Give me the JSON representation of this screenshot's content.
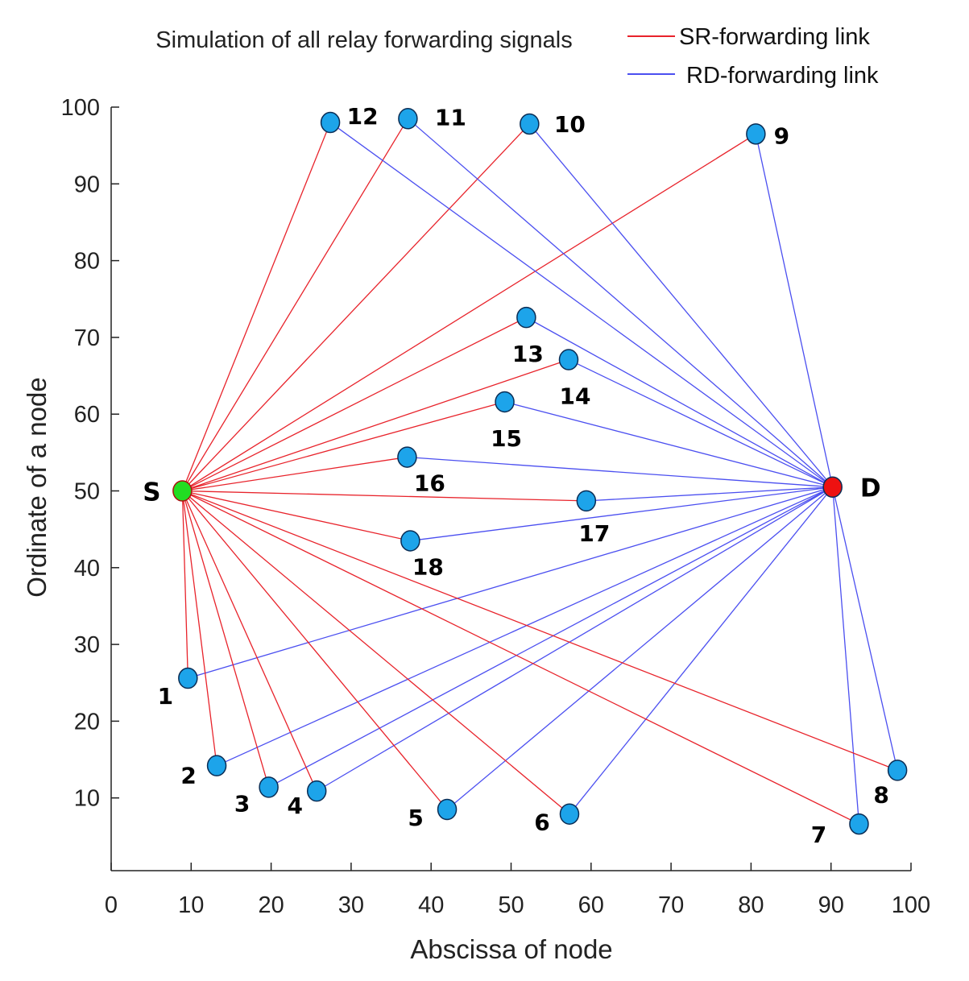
{
  "chart_data": {
    "type": "scatter",
    "title": "Simulation of all relay forwarding signals",
    "xlabel": "Abscissa of node",
    "ylabel": "Ordinate of a node",
    "xlim": [
      0,
      100
    ],
    "ylim": [
      0,
      100
    ],
    "x_ticks": [
      "0",
      "10",
      "20",
      "30",
      "40",
      "50",
      "60",
      "70",
      "80",
      "90",
      "100"
    ],
    "y_ticks": [
      "10",
      "20",
      "30",
      "40",
      "50",
      "60",
      "70",
      "80",
      "90",
      "100"
    ],
    "grid": false,
    "legend_position": "top-right",
    "legend": [
      {
        "label": "SR-forwarding link",
        "color": "#e8232b"
      },
      {
        "label": "RD-forwarding link",
        "color": "#4b4ff0"
      }
    ],
    "source": {
      "label": "S",
      "x": 8.9,
      "y": 50,
      "color": "#22dd22"
    },
    "destination": {
      "label": "D",
      "x": 90.2,
      "y": 50.5,
      "color": "#ee1111"
    },
    "relay_color": "#1da4ea",
    "relays": [
      {
        "label": "1",
        "x": 9.6,
        "y": 25.6
      },
      {
        "label": "2",
        "x": 13.2,
        "y": 14.2
      },
      {
        "label": "3",
        "x": 19.7,
        "y": 11.4
      },
      {
        "label": "4",
        "x": 25.7,
        "y": 10.9
      },
      {
        "label": "5",
        "x": 42.0,
        "y": 8.5
      },
      {
        "label": "6",
        "x": 57.3,
        "y": 7.9
      },
      {
        "label": "7",
        "x": 93.5,
        "y": 6.6
      },
      {
        "label": "8",
        "x": 98.3,
        "y": 13.6
      },
      {
        "label": "9",
        "x": 80.6,
        "y": 96.5
      },
      {
        "label": "10",
        "x": 52.3,
        "y": 97.8
      },
      {
        "label": "11",
        "x": 37.1,
        "y": 98.5
      },
      {
        "label": "12",
        "x": 27.4,
        "y": 98.0
      },
      {
        "label": "13",
        "x": 51.9,
        "y": 72.6
      },
      {
        "label": "14",
        "x": 57.2,
        "y": 67.1
      },
      {
        "label": "15",
        "x": 49.2,
        "y": 61.6
      },
      {
        "label": "16",
        "x": 37.0,
        "y": 54.4
      },
      {
        "label": "17",
        "x": 59.4,
        "y": 48.7
      },
      {
        "label": "18",
        "x": 37.4,
        "y": 43.5
      }
    ]
  }
}
